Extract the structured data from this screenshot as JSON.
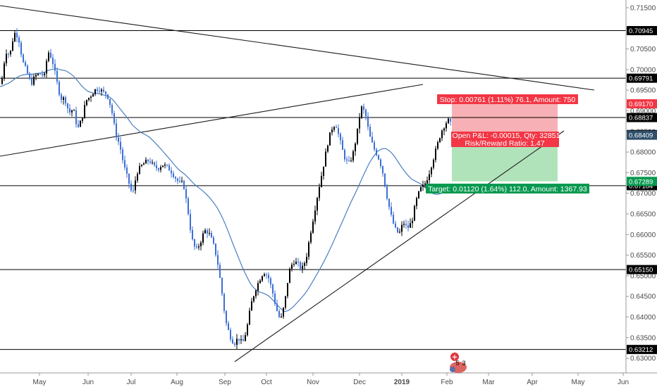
{
  "chart_data": {
    "type": "candlestick",
    "x_months": [
      "May",
      "Jun",
      "Jul",
      "Aug",
      "Sep",
      "Oct",
      "Nov",
      "Dec",
      "2019",
      "Feb",
      "Mar",
      "Apr",
      "May",
      "Jun"
    ],
    "y_ticks": [
      "0.71500",
      "0.71000",
      "0.70500",
      "0.70000",
      "0.69500",
      "0.69000",
      "0.68500",
      "0.68000",
      "0.67500",
      "0.67000",
      "0.66500",
      "0.66000",
      "0.65500",
      "0.65000",
      "0.64500",
      "0.64000",
      "0.63500",
      "0.63000"
    ],
    "ylim": [
      0.6287,
      0.7165
    ],
    "horizontal_levels": [
      {
        "value": 0.70945,
        "label": "0.70945",
        "color": "#000000"
      },
      {
        "value": 0.69791,
        "label": "0.69791",
        "color": "#000000"
      },
      {
        "value": 0.68837,
        "label": "0.68837",
        "color": "#000000"
      },
      {
        "value": 0.67184,
        "label": "0.67184",
        "color": "#000000"
      },
      {
        "value": 0.6515,
        "label": "0.65150",
        "color": "#000000"
      },
      {
        "value": 0.63212,
        "label": "0.63212",
        "color": "#000000"
      }
    ],
    "price_tags": [
      {
        "value": 0.6917,
        "label": "0.69170",
        "color": "#f23645"
      },
      {
        "value": 0.68424,
        "label": "0.68424",
        "color": "#000000"
      },
      {
        "value": 0.68409,
        "label": "0.68409",
        "color": "#2f4f6b"
      },
      {
        "value": 0.67289,
        "label": "0.67289",
        "color": "#089950"
      }
    ],
    "position": {
      "stop_label": "Stop: 0.00761 (1.11%) 76.1, Amount: 750",
      "open_pl_label": "Open P&L: -0.00015, Qty: 32851",
      "rr_label": "Risk/Reward Ratio: 1.47",
      "target_label": "Target: 0.01120 (1.64%) 112.0, Amount: 1367.93",
      "entry": 0.68409,
      "stop": 0.6917,
      "target": 0.67289
    },
    "moving_average_color": "#4a7fc1",
    "up_color": "#000000",
    "down_color": "#3b6fd6",
    "events": {
      "badge_count": "5",
      "badge_sub": "3"
    },
    "grid": false
  }
}
